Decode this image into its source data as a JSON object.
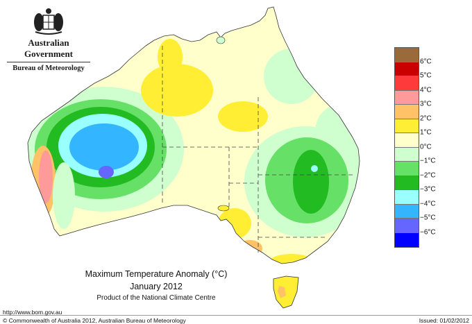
{
  "branding": {
    "government": "Australian Government",
    "agency": "Bureau of Meteorology"
  },
  "title": {
    "line1": "Maximum Temperature Anomaly (°C)",
    "line2": "January 2012",
    "line3": "Product of the National Climate Centre"
  },
  "footer": {
    "url": "http://www.bom.gov.au",
    "copyright": "© Commonwealth of Australia 2012, Australian Bureau of Meteorology",
    "issued": "Issued: 01/02/2012"
  },
  "legend": {
    "swatches": [
      {
        "color": "#9b6a3a"
      },
      {
        "color": "#c90000"
      },
      {
        "color": "#ff3a3a"
      },
      {
        "color": "#ff9a9a"
      },
      {
        "color": "#ffc266"
      },
      {
        "color": "#ffee33"
      },
      {
        "color": "#ffffcc"
      },
      {
        "color": "#cfffcf"
      },
      {
        "color": "#66e066"
      },
      {
        "color": "#22bb22"
      },
      {
        "color": "#99ffff"
      },
      {
        "color": "#33b5ff"
      },
      {
        "color": "#6666ff"
      },
      {
        "color": "#0000ff"
      }
    ],
    "labels": [
      "6°C",
      "5°C",
      "4°C",
      "3°C",
      "2°C",
      "1°C",
      "0°C",
      "−1°C",
      "−2°C",
      "−3°C",
      "−4°C",
      "−5°C",
      "−6°C"
    ]
  }
}
